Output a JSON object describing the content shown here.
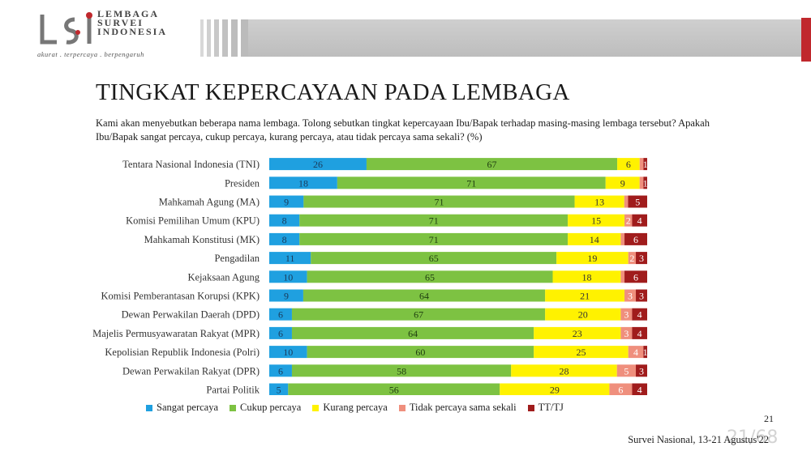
{
  "logo": {
    "lines": [
      "LEMBAGA",
      "SURVEI",
      "INDONESIA"
    ],
    "tagline": "akurat . terpercaya . berpengaruh"
  },
  "title": "TINGKAT KEPERCAYAAN PADA LEMBAGA",
  "question": "Kami akan menyebutkan beberapa nama lembaga. Tolong sebutkan tingkat kepercayaan Ibu/Bapak terhadap masing-masing lembaga tersebut? Apakah Ibu/Bapak sangat percaya, cukup percaya, kurang percaya, atau tidak percaya sama sekali? (%)",
  "page_number": "21",
  "footer": "Survei Nasional, 13-21 Agustus'22",
  "slide_watermark": "21/68",
  "colors": {
    "sangat": "#1fa0e0",
    "cukup": "#7dc242",
    "kurang": "#fff200",
    "tidak": "#ef8f7d",
    "tt": "#a01c1c"
  },
  "chart_data": {
    "type": "bar",
    "orientation": "horizontal",
    "stacked": true,
    "unit": "%",
    "categories": [
      "Tentara Nasional Indonesia (TNI)",
      "Presiden",
      "Mahkamah Agung (MA)",
      "Komisi Pemilihan Umum (KPU)",
      "Mahkamah Konstitusi (MK)",
      "Pengadilan",
      "Kejaksaan Agung",
      "Komisi Pemberantasan Korupsi (KPK)",
      "Dewan Perwakilan Daerah (DPD)",
      "Majelis Permusyawaratan Rakyat (MPR)",
      "Kepolisian Republik Indonesia (Polri)",
      "Dewan Perwakilan Rakyat (DPR)",
      "Partai Politik"
    ],
    "series": [
      {
        "name": "Sangat percaya",
        "color_key": "sangat",
        "values": [
          26,
          18,
          9,
          8,
          8,
          11,
          10,
          9,
          6,
          6,
          10,
          6,
          5
        ]
      },
      {
        "name": "Cukup percaya",
        "color_key": "cukup",
        "values": [
          67,
          71,
          71,
          71,
          71,
          65,
          65,
          64,
          67,
          64,
          60,
          58,
          56
        ]
      },
      {
        "name": "Kurang percaya",
        "color_key": "kurang",
        "values": [
          6,
          9,
          13,
          15,
          14,
          19,
          18,
          21,
          20,
          23,
          25,
          28,
          29
        ]
      },
      {
        "name": "Tidak percaya sama sekali",
        "color_key": "tidak",
        "values": [
          1,
          1,
          1,
          2,
          1,
          2,
          1,
          3,
          3,
          3,
          4,
          5,
          6
        ]
      },
      {
        "name": "TT/TJ",
        "color_key": "tt",
        "values": [
          1,
          1,
          5,
          4,
          6,
          3,
          6,
          3,
          4,
          4,
          1,
          3,
          4
        ]
      }
    ],
    "data_labels": [
      [
        "26",
        "67",
        "6",
        "",
        "1"
      ],
      [
        "18",
        "71",
        "9",
        "",
        "1"
      ],
      [
        "9",
        "71",
        "13",
        "",
        "5"
      ],
      [
        "8",
        "71",
        "15",
        "2",
        "4"
      ],
      [
        "8",
        "71",
        "14",
        "",
        "6"
      ],
      [
        "11",
        "65",
        "19",
        "2",
        "3"
      ],
      [
        "10",
        "65",
        "18",
        "",
        "6"
      ],
      [
        "9",
        "64",
        "21",
        "3",
        "3"
      ],
      [
        "6",
        "67",
        "20",
        "3",
        "4"
      ],
      [
        "6",
        "64",
        "23",
        "3",
        "4"
      ],
      [
        "10",
        "60",
        "25",
        "4",
        "1"
      ],
      [
        "6",
        "58",
        "28",
        "5",
        "3"
      ],
      [
        "5",
        "56",
        "29",
        "6",
        "4"
      ]
    ],
    "legend_position": "bottom"
  }
}
